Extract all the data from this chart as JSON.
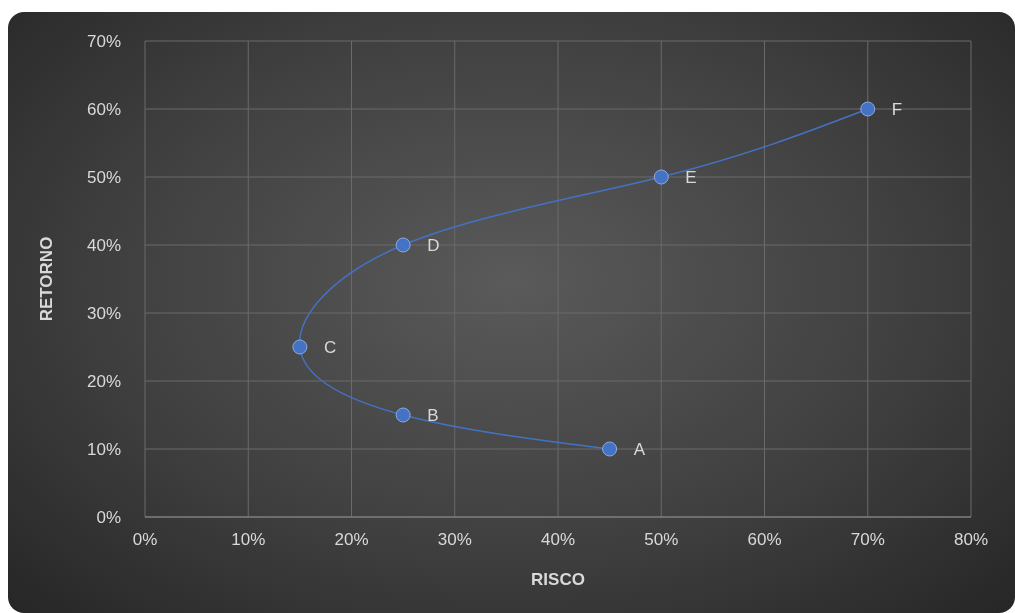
{
  "chart_data": {
    "type": "line",
    "xlabel": "RISCO",
    "ylabel": "RETORNO",
    "x": [
      45,
      25,
      15,
      25,
      50,
      70
    ],
    "series": [
      {
        "color": "#4472c4",
        "values": [
          10,
          15,
          25,
          40,
          50,
          60
        ]
      }
    ],
    "xlim": [
      0,
      80
    ],
    "xticks": [
      {
        "value": 0,
        "label": "0%"
      },
      {
        "value": 10,
        "label": "10%"
      },
      {
        "value": 20,
        "label": "20%"
      },
      {
        "value": 30,
        "label": "30%"
      },
      {
        "value": 40,
        "label": "40%"
      },
      {
        "value": 50,
        "label": "50%"
      },
      {
        "value": 60,
        "label": "60%"
      },
      {
        "value": 70,
        "label": "70%"
      },
      {
        "value": 80,
        "label": "80%"
      }
    ],
    "ylim": [
      0,
      70
    ],
    "yticks": [
      {
        "value": 0,
        "label": "0%"
      },
      {
        "value": 10,
        "label": "10%"
      },
      {
        "value": 20,
        "label": "20%"
      },
      {
        "value": 30,
        "label": "30%"
      },
      {
        "value": 40,
        "label": "40%"
      },
      {
        "value": 50,
        "label": "50%"
      },
      {
        "value": 60,
        "label": "60%"
      },
      {
        "value": 70,
        "label": "70%"
      }
    ],
    "annotations": [
      {
        "text": "A",
        "x": 45,
        "y": 10
      },
      {
        "text": "B",
        "x": 25,
        "y": 15
      },
      {
        "text": "C",
        "x": 15,
        "y": 25
      },
      {
        "text": "D",
        "x": 25,
        "y": 40
      },
      {
        "text": "E",
        "x": 50,
        "y": 50
      },
      {
        "text": "F",
        "x": 70,
        "y": 60
      }
    ],
    "grid": true,
    "marker": "circle",
    "line_style": "solid"
  }
}
